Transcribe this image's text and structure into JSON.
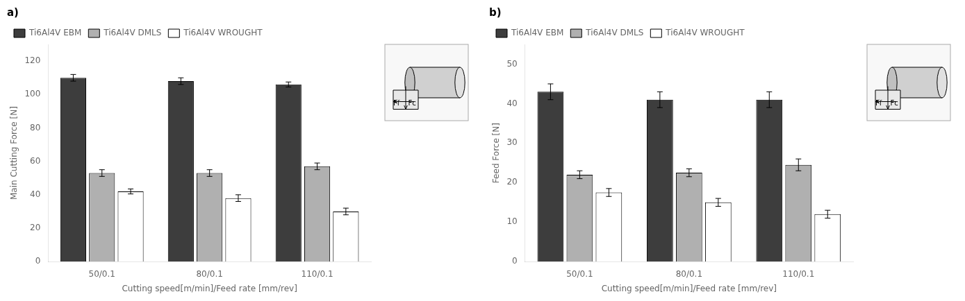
{
  "chart_data": [
    {
      "type": "bar",
      "title": "a)",
      "x_label": "Cutting speed[m/min]/Feed rate [mm/rev]",
      "y_label": "Main Cutting Force [N]",
      "categories": [
        "50/0.1",
        "80/0.1",
        "110/0.1"
      ],
      "series": [
        {
          "name": "Ti6Al4V EBM",
          "color": "#3d3d3d",
          "values": [
            110,
            108,
            106
          ],
          "errors": [
            2,
            2,
            1.5
          ]
        },
        {
          "name": "Ti6Al4V DMLS",
          "color": "#b0b0b0",
          "values": [
            53,
            53,
            57
          ],
          "errors": [
            2,
            2,
            2
          ]
        },
        {
          "name": "Ti6Al4V WROUGHT",
          "color": "#ffffff",
          "values": [
            42,
            38,
            30
          ],
          "errors": [
            1.5,
            2,
            2
          ]
        }
      ],
      "ylim": [
        0,
        130
      ],
      "yticks": [
        0,
        20,
        40,
        60,
        80,
        100,
        120
      ],
      "grid": false,
      "legend": "upper left",
      "annotations": [
        "Fc",
        "Ff"
      ]
    },
    {
      "type": "bar",
      "title": "b)",
      "x_label": "Cutting speed[m/min]/Feed rate [mm/rev]",
      "y_label": "Feed Force [N]",
      "categories": [
        "50/0.1",
        "80/0.1",
        "110/0.1"
      ],
      "series": [
        {
          "name": "Ti6Al4V EBM",
          "color": "#3d3d3d",
          "values": [
            43,
            41,
            41
          ],
          "errors": [
            2,
            2,
            2
          ]
        },
        {
          "name": "Ti6Al4V DMLS",
          "color": "#b0b0b0",
          "values": [
            22,
            22.5,
            24.5
          ],
          "errors": [
            1,
            1,
            1.5
          ]
        },
        {
          "name": "Ti6Al4V WROUGHT",
          "color": "#ffffff",
          "values": [
            17.5,
            15,
            12
          ],
          "errors": [
            1,
            1,
            1
          ]
        }
      ],
      "ylim": [
        0,
        55
      ],
      "yticks": [
        0,
        10,
        20,
        30,
        40,
        50
      ],
      "grid": false,
      "legend": "upper left",
      "annotations": [
        "Fc",
        "Ff"
      ]
    }
  ]
}
